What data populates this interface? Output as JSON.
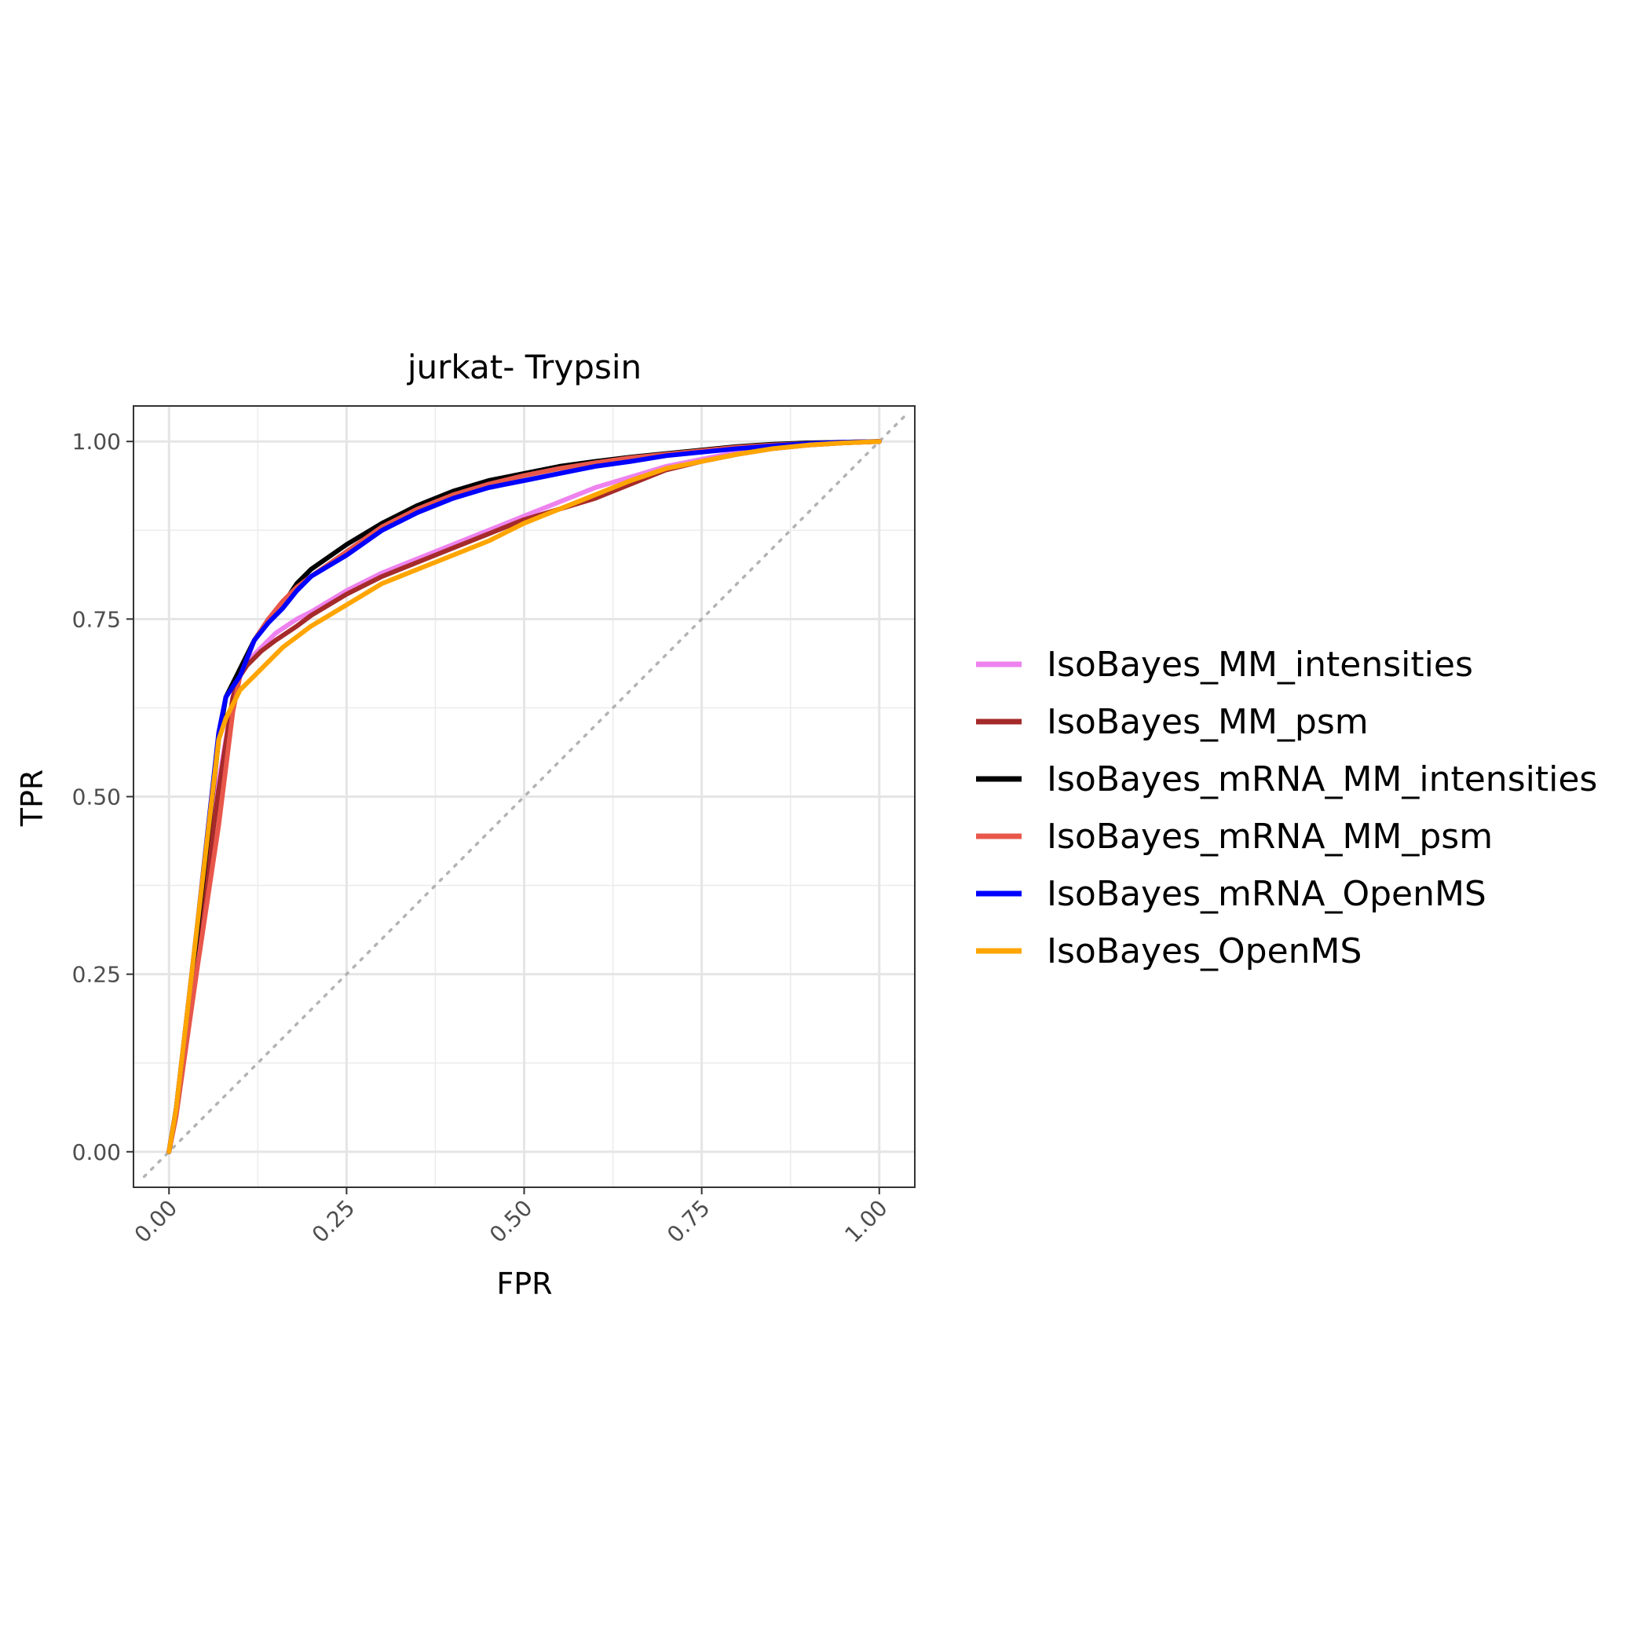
{
  "chart_data": {
    "type": "line",
    "title": "jurkat- Trypsin",
    "xlabel": "FPR",
    "ylabel": "TPR",
    "xlim": [
      -0.05,
      1.05
    ],
    "ylim": [
      -0.05,
      1.05
    ],
    "x_ticks": [
      "0.00",
      "0.25",
      "0.50",
      "0.75",
      "1.00"
    ],
    "y_ticks": [
      "0.00",
      "0.25",
      "0.50",
      "0.75",
      "1.00"
    ],
    "grid": true,
    "reference_line": "diagonal dotted grey",
    "legend_position": "right",
    "series": [
      {
        "name": "IsoBayes_MM_intensities",
        "color": "#EE82EE",
        "points": [
          [
            0,
            0
          ],
          [
            0.01,
            0.06
          ],
          [
            0.04,
            0.3
          ],
          [
            0.07,
            0.52
          ],
          [
            0.09,
            0.64
          ],
          [
            0.1,
            0.675
          ],
          [
            0.11,
            0.69
          ],
          [
            0.13,
            0.71
          ],
          [
            0.15,
            0.73
          ],
          [
            0.18,
            0.75
          ],
          [
            0.2,
            0.76
          ],
          [
            0.25,
            0.79
          ],
          [
            0.3,
            0.815
          ],
          [
            0.35,
            0.835
          ],
          [
            0.4,
            0.855
          ],
          [
            0.45,
            0.875
          ],
          [
            0.5,
            0.895
          ],
          [
            0.55,
            0.915
          ],
          [
            0.6,
            0.935
          ],
          [
            0.65,
            0.95
          ],
          [
            0.7,
            0.965
          ],
          [
            0.75,
            0.975
          ],
          [
            0.8,
            0.985
          ],
          [
            0.85,
            0.99
          ],
          [
            0.9,
            0.995
          ],
          [
            0.95,
            0.998
          ],
          [
            1.0,
            1.0
          ]
        ]
      },
      {
        "name": "IsoBayes_MM_psm",
        "color": "#A52A2A",
        "points": [
          [
            0,
            0
          ],
          [
            0.01,
            0.06
          ],
          [
            0.04,
            0.29
          ],
          [
            0.07,
            0.51
          ],
          [
            0.09,
            0.64
          ],
          [
            0.1,
            0.67
          ],
          [
            0.11,
            0.685
          ],
          [
            0.13,
            0.705
          ],
          [
            0.15,
            0.72
          ],
          [
            0.18,
            0.74
          ],
          [
            0.2,
            0.755
          ],
          [
            0.25,
            0.785
          ],
          [
            0.3,
            0.81
          ],
          [
            0.35,
            0.83
          ],
          [
            0.4,
            0.85
          ],
          [
            0.45,
            0.87
          ],
          [
            0.5,
            0.89
          ],
          [
            0.55,
            0.905
          ],
          [
            0.6,
            0.92
          ],
          [
            0.65,
            0.94
          ],
          [
            0.7,
            0.96
          ],
          [
            0.75,
            0.972
          ],
          [
            0.8,
            0.982
          ],
          [
            0.85,
            0.99
          ],
          [
            0.9,
            0.995
          ],
          [
            0.95,
            0.998
          ],
          [
            1.0,
            1.0
          ]
        ]
      },
      {
        "name": "IsoBayes_mRNA_MM_intensities",
        "color": "#000000",
        "points": [
          [
            0,
            0
          ],
          [
            0.01,
            0.06
          ],
          [
            0.04,
            0.31
          ],
          [
            0.07,
            0.58
          ],
          [
            0.08,
            0.64
          ],
          [
            0.1,
            0.68
          ],
          [
            0.12,
            0.72
          ],
          [
            0.14,
            0.75
          ],
          [
            0.16,
            0.77
          ],
          [
            0.18,
            0.8
          ],
          [
            0.2,
            0.82
          ],
          [
            0.25,
            0.855
          ],
          [
            0.3,
            0.885
          ],
          [
            0.35,
            0.91
          ],
          [
            0.4,
            0.93
          ],
          [
            0.45,
            0.945
          ],
          [
            0.5,
            0.955
          ],
          [
            0.55,
            0.965
          ],
          [
            0.6,
            0.972
          ],
          [
            0.65,
            0.978
          ],
          [
            0.7,
            0.983
          ],
          [
            0.75,
            0.988
          ],
          [
            0.8,
            0.993
          ],
          [
            0.85,
            0.996
          ],
          [
            0.9,
            0.998
          ],
          [
            0.95,
            0.999
          ],
          [
            1.0,
            1.0
          ]
        ]
      },
      {
        "name": "IsoBayes_mRNA_MM_psm",
        "color": "#E8574A",
        "points": [
          [
            0,
            0
          ],
          [
            0.01,
            0.05
          ],
          [
            0.04,
            0.26
          ],
          [
            0.07,
            0.46
          ],
          [
            0.09,
            0.62
          ],
          [
            0.1,
            0.67
          ],
          [
            0.12,
            0.72
          ],
          [
            0.14,
            0.75
          ],
          [
            0.16,
            0.775
          ],
          [
            0.18,
            0.795
          ],
          [
            0.2,
            0.81
          ],
          [
            0.25,
            0.845
          ],
          [
            0.3,
            0.88
          ],
          [
            0.35,
            0.905
          ],
          [
            0.4,
            0.925
          ],
          [
            0.45,
            0.94
          ],
          [
            0.5,
            0.952
          ],
          [
            0.55,
            0.962
          ],
          [
            0.6,
            0.97
          ],
          [
            0.65,
            0.977
          ],
          [
            0.7,
            0.982
          ],
          [
            0.75,
            0.987
          ],
          [
            0.8,
            0.992
          ],
          [
            0.85,
            0.995
          ],
          [
            0.9,
            0.997
          ],
          [
            0.95,
            0.999
          ],
          [
            1.0,
            1.0
          ]
        ]
      },
      {
        "name": "IsoBayes_mRNA_OpenMS",
        "color": "#0000FF",
        "points": [
          [
            0,
            0
          ],
          [
            0.01,
            0.06
          ],
          [
            0.04,
            0.32
          ],
          [
            0.07,
            0.59
          ],
          [
            0.08,
            0.64
          ],
          [
            0.1,
            0.67
          ],
          [
            0.12,
            0.72
          ],
          [
            0.14,
            0.745
          ],
          [
            0.16,
            0.765
          ],
          [
            0.18,
            0.79
          ],
          [
            0.2,
            0.81
          ],
          [
            0.25,
            0.84
          ],
          [
            0.3,
            0.875
          ],
          [
            0.35,
            0.9
          ],
          [
            0.4,
            0.92
          ],
          [
            0.45,
            0.935
          ],
          [
            0.5,
            0.945
          ],
          [
            0.55,
            0.955
          ],
          [
            0.6,
            0.965
          ],
          [
            0.65,
            0.972
          ],
          [
            0.7,
            0.98
          ],
          [
            0.75,
            0.985
          ],
          [
            0.8,
            0.99
          ],
          [
            0.85,
            0.994
          ],
          [
            0.9,
            0.997
          ],
          [
            0.95,
            0.999
          ],
          [
            1.0,
            1.0
          ]
        ]
      },
      {
        "name": "IsoBayes_OpenMS",
        "color": "#FFA500",
        "points": [
          [
            0,
            0
          ],
          [
            0.01,
            0.06
          ],
          [
            0.04,
            0.32
          ],
          [
            0.07,
            0.58
          ],
          [
            0.08,
            0.61
          ],
          [
            0.1,
            0.65
          ],
          [
            0.12,
            0.67
          ],
          [
            0.14,
            0.69
          ],
          [
            0.16,
            0.71
          ],
          [
            0.18,
            0.725
          ],
          [
            0.2,
            0.74
          ],
          [
            0.25,
            0.77
          ],
          [
            0.3,
            0.8
          ],
          [
            0.35,
            0.82
          ],
          [
            0.4,
            0.84
          ],
          [
            0.45,
            0.86
          ],
          [
            0.5,
            0.885
          ],
          [
            0.55,
            0.905
          ],
          [
            0.6,
            0.925
          ],
          [
            0.65,
            0.945
          ],
          [
            0.7,
            0.962
          ],
          [
            0.75,
            0.972
          ],
          [
            0.8,
            0.982
          ],
          [
            0.85,
            0.99
          ],
          [
            0.9,
            0.995
          ],
          [
            0.95,
            0.998
          ],
          [
            1.0,
            1.0
          ]
        ]
      }
    ]
  }
}
